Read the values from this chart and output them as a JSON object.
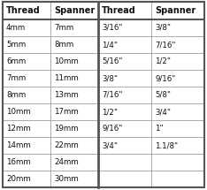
{
  "left_table": {
    "headers": [
      "Thread",
      "Spanner"
    ],
    "rows": [
      [
        "4mm",
        "7mm"
      ],
      [
        "5mm",
        "8mm"
      ],
      [
        "6mm",
        "10mm"
      ],
      [
        "7mm",
        "11mm"
      ],
      [
        "8mm",
        "13mm"
      ],
      [
        "10mm",
        "17mm"
      ],
      [
        "12mm",
        "19mm"
      ],
      [
        "14mm",
        "22mm"
      ],
      [
        "16mm",
        "24mm"
      ],
      [
        "20mm",
        "30mm"
      ]
    ]
  },
  "right_table": {
    "headers": [
      "Thread",
      "Spanner"
    ],
    "rows": [
      [
        "3/16\"",
        "3/8\""
      ],
      [
        "1/4\"",
        "7/16\""
      ],
      [
        "5/16\"",
        "1/2\""
      ],
      [
        "3/8\"",
        "9/16\""
      ],
      [
        "7/16\"",
        "5/8\""
      ],
      [
        "1/2\"",
        "3/4\""
      ],
      [
        "9/16\"",
        "1\""
      ],
      [
        "3/4\"",
        "1.1/8\""
      ],
      [
        "",
        ""
      ],
      [
        "",
        ""
      ]
    ]
  },
  "header_bg": "#ffffff",
  "header_text_color": "#111111",
  "row_text_color": "#111111",
  "grid_color": "#999999",
  "bg_color": "#ffffff",
  "outer_border_color": "#555555",
  "sep_color": "#555555",
  "header_fontsize": 7.0,
  "row_fontsize": 6.2,
  "fig_width": 2.34,
  "fig_height": 2.15,
  "dpi": 100
}
